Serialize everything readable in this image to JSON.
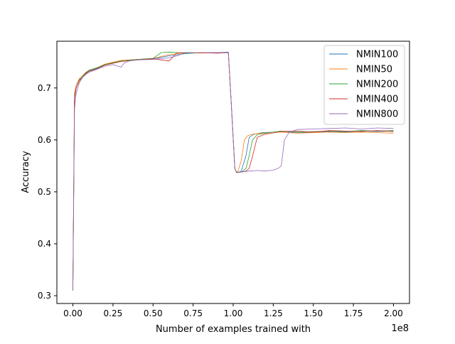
{
  "chart_data": {
    "type": "line",
    "title": "",
    "xlabel": "Number of examples trained with",
    "ylabel": "Accuracy",
    "x_offset_label": "1e8",
    "x_scale": 100000000,
    "xlim": [
      -0.1,
      2.1
    ],
    "ylim": [
      0.285,
      0.79
    ],
    "xticks": [
      0.0,
      0.25,
      0.5,
      0.75,
      1.0,
      1.25,
      1.5,
      1.75,
      2.0
    ],
    "xtick_labels": [
      "0.00",
      "0.25",
      "0.50",
      "0.75",
      "1.00",
      "1.25",
      "1.50",
      "1.75",
      "2.00"
    ],
    "yticks": [
      0.3,
      0.4,
      0.5,
      0.6,
      0.7
    ],
    "ytick_labels": [
      "0.3",
      "0.4",
      "0.5",
      "0.6",
      "0.7"
    ],
    "grid": false,
    "legend": "top-right",
    "series": [
      {
        "name": "NMIN100",
        "color": "#1f77b4",
        "x": [
          0.0,
          0.01,
          0.02,
          0.04,
          0.06,
          0.08,
          0.1,
          0.15,
          0.2,
          0.3,
          0.4,
          0.5,
          0.6,
          0.7,
          0.8,
          0.9,
          0.97,
          0.99,
          1.01,
          1.02,
          1.03,
          1.05,
          1.08,
          1.1,
          1.13,
          1.18,
          1.25,
          1.3,
          1.4,
          1.5,
          1.6,
          1.7,
          1.8,
          1.9,
          2.0
        ],
        "y": [
          0.31,
          0.68,
          0.7,
          0.715,
          0.72,
          0.728,
          0.733,
          0.738,
          0.745,
          0.752,
          0.755,
          0.756,
          0.762,
          0.766,
          0.768,
          0.768,
          0.769,
          0.66,
          0.545,
          0.538,
          0.537,
          0.54,
          0.57,
          0.605,
          0.611,
          0.614,
          0.615,
          0.616,
          0.614,
          0.615,
          0.616,
          0.615,
          0.617,
          0.616,
          0.617
        ]
      },
      {
        "name": "NMIN50",
        "color": "#ff7f0e",
        "x": [
          0.0,
          0.01,
          0.02,
          0.04,
          0.06,
          0.08,
          0.1,
          0.15,
          0.2,
          0.3,
          0.4,
          0.5,
          0.6,
          0.7,
          0.8,
          0.9,
          0.97,
          0.99,
          1.01,
          1.02,
          1.03,
          1.05,
          1.07,
          1.09,
          1.12,
          1.18,
          1.25,
          1.3,
          1.4,
          1.5,
          1.6,
          1.7,
          1.8,
          1.9,
          2.0
        ],
        "y": [
          0.32,
          0.69,
          0.705,
          0.718,
          0.724,
          0.73,
          0.734,
          0.739,
          0.746,
          0.753,
          0.755,
          0.757,
          0.764,
          0.768,
          0.767,
          0.768,
          0.768,
          0.66,
          0.545,
          0.538,
          0.54,
          0.56,
          0.6,
          0.608,
          0.611,
          0.613,
          0.615,
          0.615,
          0.613,
          0.614,
          0.615,
          0.614,
          0.615,
          0.614,
          0.613
        ]
      },
      {
        "name": "NMIN200",
        "color": "#2ca02c",
        "x": [
          0.0,
          0.01,
          0.02,
          0.04,
          0.06,
          0.08,
          0.1,
          0.15,
          0.2,
          0.3,
          0.4,
          0.5,
          0.55,
          0.6,
          0.7,
          0.8,
          0.9,
          0.97,
          0.99,
          1.01,
          1.02,
          1.05,
          1.08,
          1.1,
          1.12,
          1.15,
          1.2,
          1.3,
          1.4,
          1.5,
          1.6,
          1.7,
          1.8,
          1.9,
          2.0
        ],
        "y": [
          0.31,
          0.685,
          0.7,
          0.716,
          0.722,
          0.729,
          0.734,
          0.739,
          0.745,
          0.752,
          0.755,
          0.757,
          0.768,
          0.769,
          0.767,
          0.768,
          0.768,
          0.768,
          0.66,
          0.545,
          0.538,
          0.538,
          0.545,
          0.57,
          0.6,
          0.61,
          0.613,
          0.617,
          0.615,
          0.616,
          0.617,
          0.616,
          0.618,
          0.617,
          0.618
        ]
      },
      {
        "name": "NMIN400",
        "color": "#d62728",
        "x": [
          0.0,
          0.01,
          0.02,
          0.04,
          0.06,
          0.08,
          0.1,
          0.15,
          0.2,
          0.3,
          0.4,
          0.5,
          0.6,
          0.65,
          0.7,
          0.8,
          0.9,
          0.97,
          0.99,
          1.01,
          1.02,
          1.05,
          1.08,
          1.1,
          1.13,
          1.15,
          1.2,
          1.3,
          1.4,
          1.5,
          1.6,
          1.7,
          1.8,
          1.9,
          2.0
        ],
        "y": [
          0.31,
          0.68,
          0.7,
          0.714,
          0.72,
          0.727,
          0.732,
          0.737,
          0.744,
          0.751,
          0.754,
          0.756,
          0.752,
          0.768,
          0.768,
          0.768,
          0.767,
          0.768,
          0.66,
          0.545,
          0.537,
          0.538,
          0.54,
          0.545,
          0.58,
          0.605,
          0.611,
          0.616,
          0.617,
          0.615,
          0.618,
          0.617,
          0.616,
          0.618,
          0.616
        ]
      },
      {
        "name": "NMIN800",
        "color": "#9467bd",
        "x": [
          0.0,
          0.01,
          0.02,
          0.04,
          0.06,
          0.08,
          0.1,
          0.15,
          0.2,
          0.25,
          0.3,
          0.32,
          0.35,
          0.4,
          0.5,
          0.6,
          0.65,
          0.7,
          0.8,
          0.9,
          0.97,
          0.99,
          1.01,
          1.02,
          1.05,
          1.1,
          1.15,
          1.2,
          1.25,
          1.28,
          1.3,
          1.32,
          1.35,
          1.4,
          1.5,
          1.6,
          1.7,
          1.8,
          1.9,
          2.0
        ],
        "y": [
          0.31,
          0.66,
          0.69,
          0.71,
          0.72,
          0.726,
          0.73,
          0.736,
          0.742,
          0.745,
          0.74,
          0.748,
          0.752,
          0.754,
          0.755,
          0.758,
          0.762,
          0.768,
          0.768,
          0.768,
          0.768,
          0.66,
          0.545,
          0.537,
          0.538,
          0.54,
          0.541,
          0.54,
          0.542,
          0.545,
          0.55,
          0.6,
          0.615,
          0.62,
          0.621,
          0.622,
          0.623,
          0.621,
          0.623,
          0.622
        ]
      }
    ]
  }
}
